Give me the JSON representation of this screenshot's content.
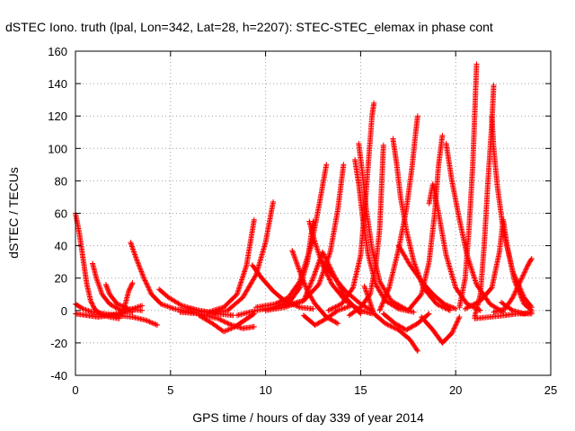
{
  "chart_data": {
    "type": "scatter",
    "title": "dSTEC Iono. truth (lpal, Lon=342, Lat=28, h=2207): STEC-STEC_elemax in phase cont",
    "xlabel": "GPS time / hours of day 339 of year 2014",
    "ylabel": "dSTEC  / TECUs",
    "xlim": [
      0,
      25
    ],
    "ylim": [
      -40,
      160
    ],
    "xticks": [
      0,
      5,
      10,
      15,
      20,
      25
    ],
    "yticks": [
      -40,
      -20,
      0,
      20,
      40,
      60,
      80,
      100,
      120,
      140,
      160
    ],
    "grid": true,
    "legend": "none",
    "marker": "plus",
    "color": "#ff0000",
    "series": [
      {
        "points": [
          [
            0.0,
            60
          ],
          [
            0.2,
            48
          ],
          [
            0.4,
            32
          ],
          [
            0.6,
            16
          ],
          [
            0.8,
            6
          ],
          [
            1.0,
            1
          ],
          [
            1.3,
            -2
          ],
          [
            1.8,
            -4
          ],
          [
            2.3,
            -5
          ]
        ]
      },
      {
        "points": [
          [
            0.0,
            4
          ],
          [
            0.4,
            1
          ],
          [
            0.9,
            -1
          ],
          [
            1.5,
            -2
          ],
          [
            2.2,
            -3
          ],
          [
            3.0,
            -4
          ],
          [
            3.7,
            -6
          ],
          [
            4.3,
            -9
          ]
        ]
      },
      {
        "points": [
          [
            0.0,
            -2
          ],
          [
            0.6,
            -3
          ],
          [
            1.2,
            -4
          ],
          [
            1.8,
            -3
          ],
          [
            2.5,
            -1
          ],
          [
            3.0,
            1
          ],
          [
            3.5,
            3
          ]
        ]
      },
      {
        "points": [
          [
            0.9,
            29
          ],
          [
            1.1,
            20
          ],
          [
            1.4,
            10
          ],
          [
            1.8,
            4
          ],
          [
            2.4,
            0
          ],
          [
            3.0,
            -1
          ]
        ]
      },
      {
        "points": [
          [
            1.6,
            16
          ],
          [
            1.8,
            10
          ],
          [
            2.2,
            4
          ],
          [
            2.8,
            1
          ],
          [
            3.5,
            0
          ]
        ]
      },
      {
        "points": [
          [
            2.4,
            -3
          ],
          [
            2.6,
            3
          ],
          [
            2.8,
            12
          ],
          [
            3.0,
            17
          ]
        ]
      },
      {
        "points": [
          [
            2.9,
            42
          ],
          [
            3.2,
            32
          ],
          [
            3.6,
            20
          ],
          [
            4.0,
            10
          ],
          [
            4.5,
            4
          ],
          [
            5.2,
            1
          ],
          [
            6.2,
            -1
          ],
          [
            7.0,
            -1
          ]
        ]
      },
      {
        "points": [
          [
            4.4,
            13
          ],
          [
            4.9,
            8
          ],
          [
            5.6,
            3
          ],
          [
            6.5,
            0
          ],
          [
            7.4,
            -2
          ],
          [
            8.3,
            -3
          ]
        ]
      },
      {
        "points": [
          [
            5.5,
            -1
          ],
          [
            6.5,
            -2
          ],
          [
            7.5,
            -5
          ],
          [
            8.2,
            -9
          ],
          [
            8.8,
            -11
          ],
          [
            9.4,
            -10
          ]
        ]
      },
      {
        "points": [
          [
            6.5,
            -3
          ],
          [
            7.2,
            -8
          ],
          [
            7.8,
            -13
          ],
          [
            8.4,
            -10
          ],
          [
            8.9,
            -6
          ],
          [
            9.4,
            -2
          ]
        ]
      },
      {
        "points": [
          [
            6.0,
            1
          ],
          [
            7.0,
            -1
          ],
          [
            7.8,
            2
          ],
          [
            8.5,
            10
          ],
          [
            9.0,
            28
          ],
          [
            9.4,
            56
          ]
        ]
      },
      {
        "points": [
          [
            7.0,
            -2
          ],
          [
            8.0,
            0
          ],
          [
            8.8,
            8
          ],
          [
            9.5,
            22
          ],
          [
            10.0,
            42
          ],
          [
            10.4,
            67
          ]
        ]
      },
      {
        "points": [
          [
            9.3,
            28
          ],
          [
            9.8,
            20
          ],
          [
            10.4,
            12
          ],
          [
            11.0,
            6
          ],
          [
            11.8,
            2
          ],
          [
            12.5,
            1
          ]
        ]
      },
      {
        "points": [
          [
            8.5,
            -3
          ],
          [
            9.5,
            0
          ],
          [
            10.5,
            2
          ],
          [
            11.3,
            6
          ],
          [
            11.8,
            14
          ],
          [
            12.2,
            30
          ],
          [
            12.5,
            55
          ]
        ]
      },
      {
        "points": [
          [
            9.5,
            2
          ],
          [
            10.5,
            4
          ],
          [
            11.2,
            8
          ],
          [
            11.8,
            18
          ],
          [
            12.4,
            40
          ],
          [
            12.8,
            64
          ],
          [
            13.2,
            90
          ]
        ]
      },
      {
        "points": [
          [
            10.0,
            0
          ],
          [
            11.0,
            2
          ],
          [
            12.0,
            6
          ],
          [
            12.8,
            16
          ],
          [
            13.4,
            36
          ],
          [
            13.8,
            62
          ],
          [
            14.1,
            90
          ]
        ]
      },
      {
        "points": [
          [
            11.0,
            3
          ],
          [
            12.0,
            6
          ],
          [
            12.5,
            20
          ],
          [
            13.0,
            36
          ],
          [
            13.5,
            24
          ],
          [
            14.2,
            8
          ],
          [
            15.0,
            -2
          ]
        ]
      },
      {
        "points": [
          [
            11.4,
            37
          ],
          [
            11.8,
            24
          ],
          [
            12.2,
            12
          ],
          [
            12.6,
            4
          ],
          [
            13.2,
            -4
          ],
          [
            13.8,
            -8
          ]
        ]
      },
      {
        "points": [
          [
            12.0,
            -3
          ],
          [
            12.6,
            -9
          ],
          [
            13.2,
            -5
          ],
          [
            13.8,
            0
          ],
          [
            14.5,
            3
          ]
        ]
      },
      {
        "points": [
          [
            12.3,
            55
          ],
          [
            12.6,
            42
          ],
          [
            13.0,
            28
          ],
          [
            13.5,
            16
          ],
          [
            14.2,
            6
          ],
          [
            15.0,
            0
          ],
          [
            15.6,
            -2
          ]
        ]
      },
      {
        "points": [
          [
            13.0,
            30
          ],
          [
            13.5,
            22
          ],
          [
            14.2,
            12
          ],
          [
            15.0,
            4
          ],
          [
            15.6,
            0
          ]
        ]
      },
      {
        "points": [
          [
            13.3,
            0
          ],
          [
            14.0,
            4
          ],
          [
            14.6,
            14
          ],
          [
            15.0,
            34
          ],
          [
            15.2,
            60
          ],
          [
            15.4,
            90
          ],
          [
            15.6,
            120
          ],
          [
            15.7,
            128
          ]
        ]
      },
      {
        "points": [
          [
            14.7,
            93
          ],
          [
            14.9,
            78
          ],
          [
            15.1,
            58
          ],
          [
            15.4,
            34
          ],
          [
            15.8,
            16
          ],
          [
            16.3,
            6
          ],
          [
            17.0,
            1
          ],
          [
            17.8,
            -1
          ]
        ]
      },
      {
        "points": [
          [
            14.9,
            103
          ],
          [
            15.1,
            84
          ],
          [
            15.3,
            62
          ],
          [
            15.6,
            38
          ],
          [
            16.0,
            18
          ],
          [
            16.6,
            6
          ],
          [
            17.5,
            0
          ]
        ]
      },
      {
        "points": [
          [
            14.4,
            -3
          ],
          [
            15.0,
            2
          ],
          [
            15.5,
            10
          ],
          [
            15.8,
            28
          ],
          [
            16.0,
            50
          ],
          [
            16.1,
            76
          ],
          [
            16.2,
            102
          ]
        ]
      },
      {
        "points": [
          [
            15.2,
            15
          ],
          [
            15.7,
            -2
          ],
          [
            16.3,
            -8
          ],
          [
            17.0,
            -12
          ],
          [
            17.6,
            -18
          ],
          [
            18.0,
            -25
          ]
        ]
      },
      {
        "points": [
          [
            16.2,
            -2
          ],
          [
            16.8,
            -8
          ],
          [
            17.4,
            -12
          ],
          [
            18.0,
            -8
          ],
          [
            18.6,
            -2
          ]
        ]
      },
      {
        "points": [
          [
            16.7,
            106
          ],
          [
            16.9,
            90
          ],
          [
            17.1,
            70
          ],
          [
            17.4,
            50
          ],
          [
            17.8,
            30
          ],
          [
            18.3,
            14
          ],
          [
            19.0,
            4
          ],
          [
            19.7,
            0
          ]
        ]
      },
      {
        "points": [
          [
            16.0,
            0
          ],
          [
            16.5,
            14
          ],
          [
            17.0,
            38
          ],
          [
            17.4,
            62
          ],
          [
            17.7,
            88
          ],
          [
            17.9,
            110
          ],
          [
            18.0,
            120
          ]
        ]
      },
      {
        "points": [
          [
            17.0,
            40
          ],
          [
            17.6,
            28
          ],
          [
            18.2,
            18
          ],
          [
            18.8,
            10
          ],
          [
            19.4,
            4
          ],
          [
            20.0,
            1
          ]
        ]
      },
      {
        "points": [
          [
            18.2,
            -4
          ],
          [
            18.8,
            -12
          ],
          [
            19.3,
            -20
          ],
          [
            19.8,
            -14
          ],
          [
            20.2,
            -4
          ]
        ]
      },
      {
        "points": [
          [
            17.5,
            0
          ],
          [
            18.2,
            10
          ],
          [
            18.6,
            30
          ],
          [
            18.9,
            60
          ],
          [
            19.1,
            90
          ],
          [
            19.3,
            108
          ]
        ]
      },
      {
        "points": [
          [
            18.6,
            66
          ],
          [
            18.8,
            78
          ],
          [
            19.1,
            60
          ],
          [
            19.5,
            34
          ],
          [
            20.0,
            14
          ],
          [
            20.6,
            4
          ],
          [
            21.3,
            0
          ]
        ]
      },
      {
        "points": [
          [
            19.5,
            103
          ],
          [
            19.8,
            80
          ],
          [
            20.2,
            56
          ],
          [
            20.6,
            34
          ],
          [
            21.1,
            16
          ],
          [
            21.8,
            4
          ],
          [
            22.5,
            -1
          ]
        ]
      },
      {
        "points": [
          [
            20.2,
            2
          ],
          [
            20.5,
            20
          ],
          [
            20.7,
            50
          ],
          [
            20.9,
            90
          ],
          [
            21.0,
            120
          ],
          [
            21.1,
            152
          ]
        ]
      },
      {
        "points": [
          [
            21.0,
            -4
          ],
          [
            21.3,
            10
          ],
          [
            21.5,
            40
          ],
          [
            21.7,
            80
          ],
          [
            21.9,
            115
          ],
          [
            22.0,
            139
          ]
        ]
      },
      {
        "points": [
          [
            21.9,
            120
          ],
          [
            22.0,
            100
          ],
          [
            22.2,
            76
          ],
          [
            22.5,
            50
          ],
          [
            23.0,
            24
          ],
          [
            23.6,
            8
          ],
          [
            24.0,
            2
          ]
        ]
      },
      {
        "points": [
          [
            20.5,
            1
          ],
          [
            21.3,
            6
          ],
          [
            21.9,
            14
          ],
          [
            22.3,
            36
          ],
          [
            22.5,
            56
          ],
          [
            22.7,
            40
          ],
          [
            23.1,
            18
          ],
          [
            23.6,
            4
          ],
          [
            24.0,
            0
          ]
        ]
      },
      {
        "points": [
          [
            21.0,
            -5
          ],
          [
            21.8,
            -4
          ],
          [
            22.6,
            -3
          ],
          [
            23.2,
            -2
          ],
          [
            24.0,
            -2
          ]
        ]
      },
      {
        "points": [
          [
            22.0,
            -1
          ],
          [
            22.6,
            1
          ],
          [
            23.0,
            8
          ],
          [
            23.4,
            18
          ],
          [
            23.8,
            28
          ],
          [
            24.0,
            32
          ]
        ]
      },
      {
        "points": [
          [
            22.4,
            5
          ],
          [
            23.0,
            0
          ],
          [
            23.6,
            -2
          ],
          [
            24.0,
            -1
          ]
        ]
      }
    ]
  }
}
